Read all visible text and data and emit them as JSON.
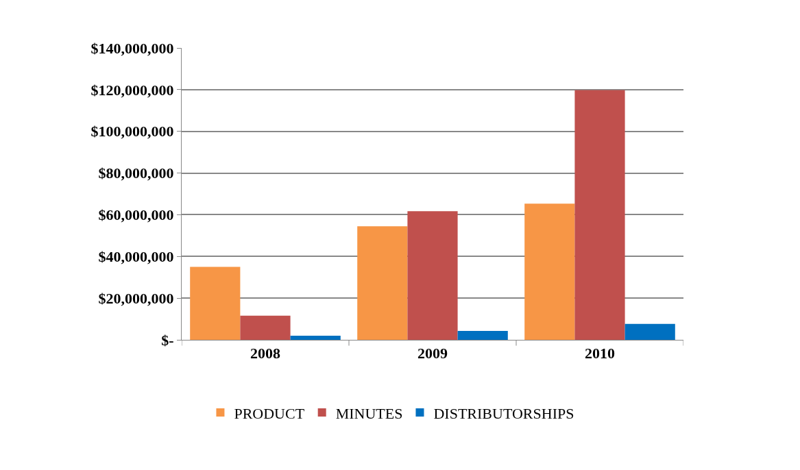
{
  "chart_data": {
    "type": "bar",
    "categories": [
      "2008",
      "2009",
      "2010"
    ],
    "series": [
      {
        "name": "PRODUCT",
        "color": "#f79646",
        "values": [
          35000000,
          54500000,
          65300000
        ]
      },
      {
        "name": "MINUTES",
        "color": "#c0504d",
        "values": [
          11600000,
          61700000,
          119800000
        ]
      },
      {
        "name": "DISTRIBUTORSHIPS",
        "color": "#0070c0",
        "values": [
          2000000,
          4300000,
          7600000
        ]
      }
    ],
    "ylim": [
      0,
      140000000
    ],
    "yticks": [
      {
        "value": 0,
        "label": "$-"
      },
      {
        "value": 20000000,
        "label": "$20,000,000"
      },
      {
        "value": 40000000,
        "label": "$40,000,000"
      },
      {
        "value": 60000000,
        "label": "$60,000,000"
      },
      {
        "value": 80000000,
        "label": "$80,000,000"
      },
      {
        "value": 100000000,
        "label": "$100,000,000"
      },
      {
        "value": 120000000,
        "label": "$120,000,000"
      },
      {
        "value": 140000000,
        "label": "$140,000,000"
      }
    ],
    "grid": "y",
    "legend": "bottom"
  }
}
